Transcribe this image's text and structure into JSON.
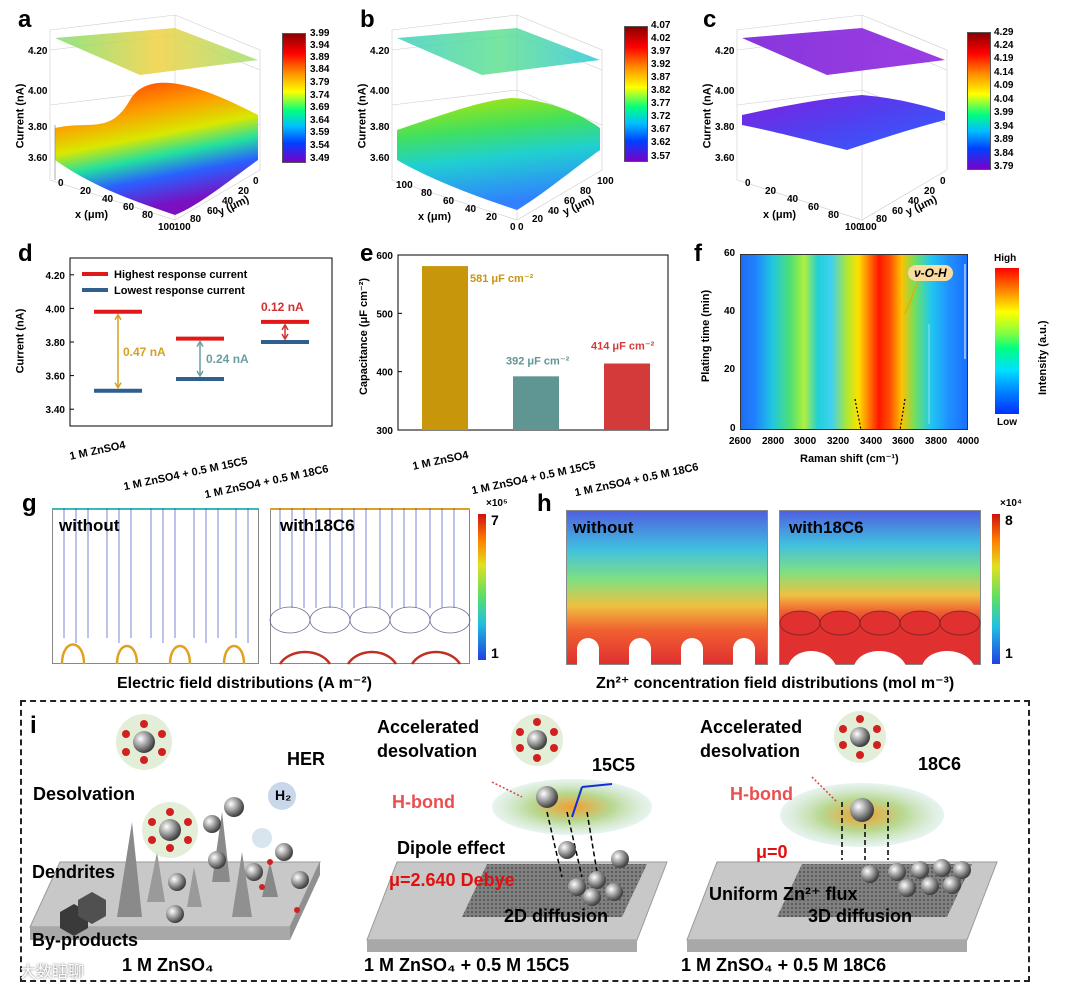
{
  "panels": {
    "a": {
      "label": "a",
      "zlabel": "Current (nA)",
      "zticks": [
        "4.20",
        "4.00",
        "3.80",
        "3.60"
      ],
      "xlabel": "x (μm)",
      "ylabel": "y (μm)",
      "xticks": [
        "0",
        "20",
        "40",
        "60",
        "80",
        "100"
      ],
      "yticks": [
        "0",
        "20",
        "40",
        "60",
        "80",
        "100"
      ],
      "cbar": [
        "3.99",
        "3.94",
        "3.89",
        "3.84",
        "3.79",
        "3.74",
        "3.69",
        "3.64",
        "3.59",
        "3.54",
        "3.49"
      ]
    },
    "b": {
      "label": "b",
      "zlabel": "Current (nA)",
      "zticks": [
        "4.20",
        "4.00",
        "3.80",
        "3.60"
      ],
      "xlabel": "x (μm)",
      "ylabel": "y (μm)",
      "xticks": [
        "100",
        "80",
        "60",
        "40",
        "20",
        "0"
      ],
      "yticks": [
        "0",
        "20",
        "40",
        "60",
        "80",
        "100"
      ],
      "cbar": [
        "4.07",
        "4.02",
        "3.97",
        "3.92",
        "3.87",
        "3.82",
        "3.77",
        "3.72",
        "3.67",
        "3.62",
        "3.57"
      ]
    },
    "c": {
      "label": "c",
      "zlabel": "Current (nA)",
      "zticks": [
        "4.20",
        "4.00",
        "3.80",
        "3.60"
      ],
      "xlabel": "x (μm)",
      "ylabel": "y (μm)",
      "xticks": [
        "0",
        "20",
        "40",
        "60",
        "80",
        "100"
      ],
      "yticks": [
        "0",
        "20",
        "40",
        "60",
        "80",
        "100"
      ],
      "cbar": [
        "4.29",
        "4.24",
        "4.19",
        "4.14",
        "4.09",
        "4.04",
        "3.99",
        "3.94",
        "3.89",
        "3.84",
        "3.79"
      ]
    },
    "d": {
      "label": "d",
      "ylabel": "Current (nA)",
      "yticks": [
        "4.20",
        "4.00",
        "3.80",
        "3.60",
        "3.40"
      ],
      "legend_high": "Highest response current",
      "legend_low": "Lowest response current",
      "categories": [
        "1 M ZnSO4",
        "1 M ZnSO4 + 0.5 M 15C5",
        "1 M ZnSO4 + 0.5 M 18C6"
      ],
      "annotations": [
        "0.47 nA",
        "0.24 nA",
        "0.12 nA"
      ]
    },
    "e": {
      "label": "e",
      "ylabel": "Capacitance (μF cm⁻²)",
      "yticks": [
        "600",
        "500",
        "400",
        "300"
      ],
      "annotations": [
        "581 μF cm⁻²",
        "392 μF cm⁻²",
        "414 μF cm⁻²"
      ]
    },
    "f": {
      "label": "f",
      "ylabel": "Plating time (min)",
      "xlabel": "Raman shift (cm⁻¹)",
      "xticks": [
        "2600",
        "2800",
        "3000",
        "3200",
        "3400",
        "3600",
        "3800",
        "4000"
      ],
      "yticks": [
        "60",
        "40",
        "20",
        "0"
      ],
      "annotation": "ν-O-H",
      "cbar_title": "Intensity (a.u.)",
      "cbar_high": "High",
      "cbar_low": "Low"
    },
    "g": {
      "label": "g",
      "left_title": "without",
      "right_title": "with18C6",
      "cbar_exp": "×10⁵",
      "cbar_max": "7",
      "cbar_min": "1",
      "caption": "Electric field distributions (A m⁻²)"
    },
    "h": {
      "label": "h",
      "left_title": "without",
      "right_title": "with18C6",
      "cbar_exp": "×10⁴",
      "cbar_max": "8",
      "cbar_min": "1",
      "caption": "Zn²⁺ concentration field distributions (mol m⁻³)"
    },
    "i": {
      "label": "i",
      "left": {
        "desolvation": "Desolvation",
        "her": "HER",
        "h2": "H₂",
        "dendrites": "Dendrites",
        "byproducts": "By-products",
        "caption": "1 M ZnSO₄"
      },
      "middle": {
        "title1": "Accelerated",
        "title2": "desolvation",
        "molecule": "15C5",
        "hbond": "H-bond",
        "dipole": "Dipole effect",
        "mu": "μ=2.640 Debye",
        "diffusion": "2D diffusion",
        "caption": "1 M ZnSO₄ + 0.5 M 15C5"
      },
      "right": {
        "title1": "Accelerated",
        "title2": "desolvation",
        "molecule": "18C6",
        "hbond": "H-bond",
        "mu": "μ=0",
        "flux": "Uniform Zn²⁺ flux",
        "diffusion": "3D diffusion",
        "caption": "1 M ZnSO₄ + 0.5 M 18C6"
      }
    },
    "watermark": "大数瞎聊"
  },
  "chart_data": [
    {
      "type": "bar",
      "panel": "d",
      "title": "",
      "ylabel": "Current (nA)",
      "ylim": [
        3.3,
        4.3
      ],
      "categories": [
        "1 M ZnSO4",
        "1 M ZnSO4 + 0.5 M 15C5",
        "1 M ZnSO4 + 0.5 M 18C6"
      ],
      "series": [
        {
          "name": "Highest response current",
          "values": [
            3.98,
            3.82,
            3.92
          ]
        },
        {
          "name": "Lowest response current",
          "values": [
            3.51,
            3.58,
            3.8
          ]
        }
      ]
    },
    {
      "type": "bar",
      "panel": "e",
      "ylabel": "Capacitance (μF cm⁻²)",
      "ylim": [
        300,
        600
      ],
      "categories": [
        "1 M ZnSO4",
        "1 M ZnSO4 + 0.5 M 15C5",
        "1 M ZnSO4 + 0.5 M 18C6"
      ],
      "values": [
        581,
        392,
        414
      ],
      "colors": [
        "#c8960a",
        "#5f9592",
        "#d33a3a"
      ]
    },
    {
      "type": "heatmap",
      "panel": "f",
      "xlabel": "Raman shift (cm⁻¹)",
      "ylabel": "Plating time (min)",
      "xlim": [
        2600,
        4000
      ],
      "ylim": [
        0,
        60
      ]
    }
  ]
}
